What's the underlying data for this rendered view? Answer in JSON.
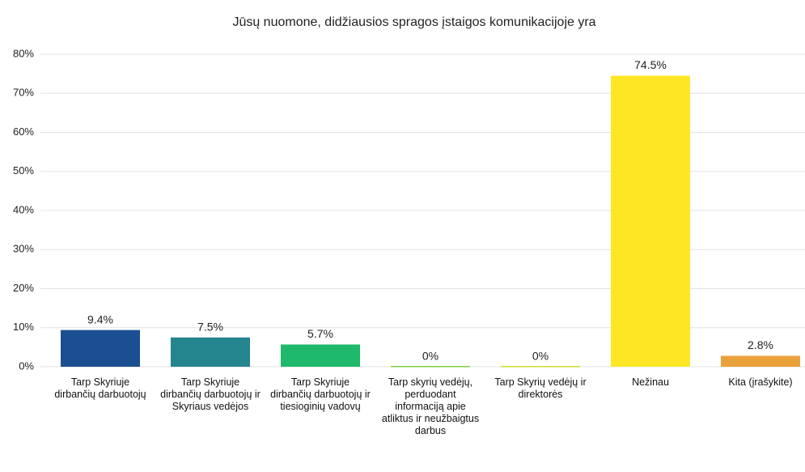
{
  "chart_data": {
    "type": "bar",
    "title": "Jūsų nuomone, didžiausios spragos įstaigos komunikacijoje yra",
    "categories": [
      "Tarp Skyriuje dirbančių darbuotojų",
      "Tarp Skyriuje dirbančių darbuotojų ir Skyriaus vedėjos",
      "Tarp Skyriuje dirbančių darbuotojų ir tiesioginių vadovų",
      "Tarp skyrių vedėjų, perduodant informaciją apie atliktus ir neužbaigtus darbus",
      "Tarp Skyrių vedėjų ir direktorės",
      "Nežinau",
      "Kita (įrašykite)"
    ],
    "values": [
      9.4,
      7.5,
      5.7,
      0,
      0,
      74.5,
      2.8
    ],
    "value_labels": [
      "9.4%",
      "7.5%",
      "5.7%",
      "0%",
      "0%",
      "74.5%",
      "2.8%"
    ],
    "colors": [
      "#1b4f91",
      "#24858f",
      "#1fb96b",
      "#7fcf3f",
      "#c9df2a",
      "#fde725",
      "#e9a23b"
    ],
    "ylim": [
      0,
      80
    ],
    "yticks": [
      {
        "value": 0,
        "label": "0%"
      },
      {
        "value": 10,
        "label": "10%"
      },
      {
        "value": 20,
        "label": "20%"
      },
      {
        "value": 30,
        "label": "30%"
      },
      {
        "value": 40,
        "label": "40%"
      },
      {
        "value": 50,
        "label": "50%"
      },
      {
        "value": 60,
        "label": "60%"
      },
      {
        "value": 70,
        "label": "70%"
      },
      {
        "value": 80,
        "label": "80%"
      }
    ],
    "grid": true
  }
}
